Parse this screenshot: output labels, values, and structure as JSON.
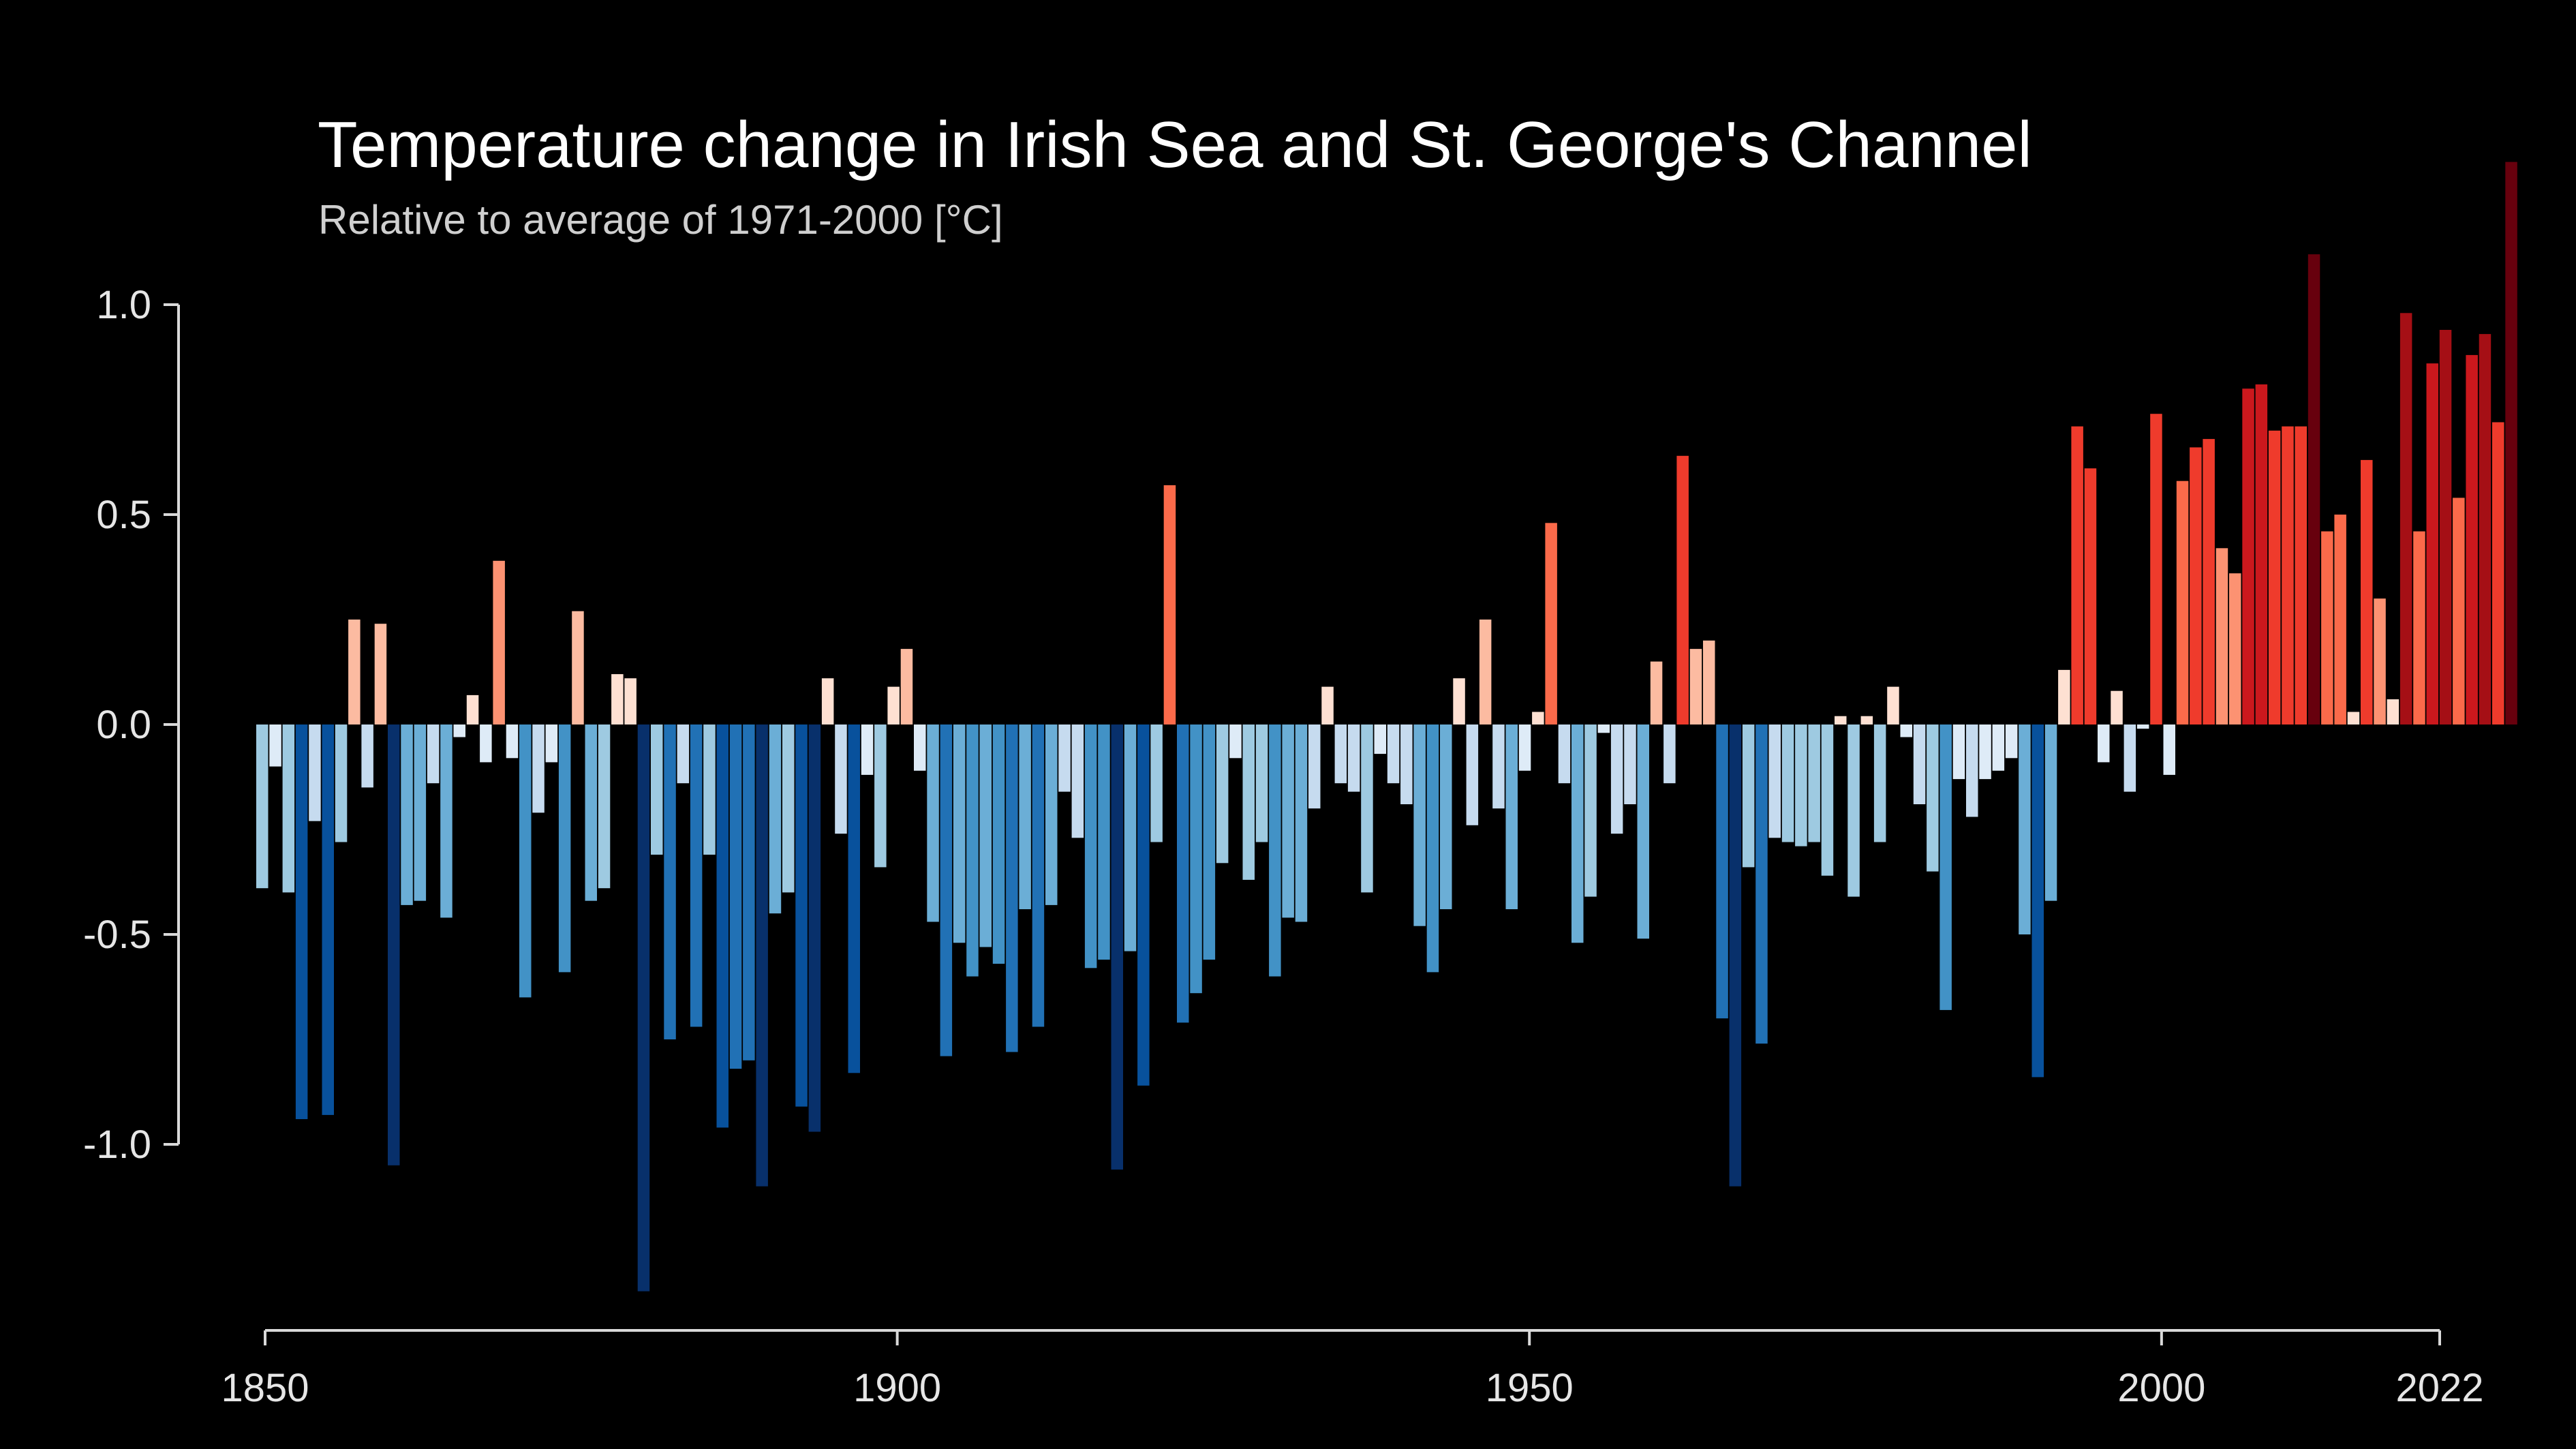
{
  "chart_data": {
    "type": "bar",
    "title": "Temperature change in Irish Sea and St. George's Channel",
    "subtitle": "Relative to average of 1971-2000  [°C]",
    "xlim": [
      1850,
      2022
    ],
    "ylim": [
      -1.45,
      1.35
    ],
    "yticks": [
      "1.0",
      "0.5",
      "0.0",
      "-0.5",
      "-1.0"
    ],
    "ytick_values": [
      1.0,
      0.5,
      0.0,
      -0.5,
      -1.0
    ],
    "xticks": [
      "1850",
      "1900",
      "1950",
      "2000",
      "2022"
    ],
    "xtick_values": [
      1850,
      1900,
      1950,
      2000,
      2022
    ],
    "grid": false,
    "color_scale": {
      "cold": [
        "#08306b",
        "#08519c",
        "#2171b5",
        "#4292c6",
        "#6baed6",
        "#9ecae1",
        "#c6dbef",
        "#deebf7"
      ],
      "warm": [
        "#fee0d2",
        "#fcbba1",
        "#fc9272",
        "#fb6a4a",
        "#ef3b2c",
        "#cb181d",
        "#a50f15",
        "#67000d"
      ]
    },
    "series": [
      {
        "start_year": 1850,
        "values": [
          -0.39,
          -0.1,
          -0.4,
          -0.94,
          -0.23,
          -0.93,
          -0.28,
          0.25,
          -0.15,
          0.24,
          -1.05,
          -0.43,
          -0.42,
          -0.14,
          -0.46,
          -0.03,
          0.07,
          -0.09,
          0.39,
          -0.08,
          -0.65,
          -0.21,
          -0.09,
          -0.59,
          0.27,
          -0.42,
          -0.39,
          0.12,
          0.11,
          -1.35,
          -0.31,
          -0.75,
          -0.14,
          -0.72,
          -0.31,
          -0.96,
          -0.82,
          -0.8,
          -1.1,
          -0.45,
          -0.4,
          -0.91,
          -0.97,
          0.11,
          -0.26,
          -0.83,
          -0.12,
          -0.34,
          0.09,
          0.18,
          -0.11,
          -0.47,
          -0.79,
          -0.52,
          -0.6,
          -0.53,
          -0.57,
          -0.78,
          -0.44,
          -0.72,
          -0.43,
          -0.16,
          -0.27,
          -0.58,
          -0.56,
          -1.06,
          -0.54,
          -0.86,
          -0.28,
          0.57,
          -0.71,
          -0.64,
          -0.56,
          -0.33,
          -0.08,
          -0.37,
          -0.28,
          -0.6,
          -0.46,
          -0.47,
          -0.2,
          0.09,
          -0.14,
          -0.16,
          -0.4,
          -0.07,
          -0.14,
          -0.19,
          -0.48,
          -0.59,
          -0.44,
          0.11,
          -0.24,
          0.25,
          -0.2,
          -0.44,
          -0.11,
          0.03,
          0.48,
          -0.14,
          -0.52,
          -0.41,
          -0.02,
          -0.26,
          -0.19,
          -0.51,
          0.15,
          -0.14,
          0.64,
          0.18,
          0.2,
          -0.7,
          -1.1,
          -0.34,
          -0.76,
          -0.27,
          -0.28,
          -0.29,
          -0.28,
          -0.36,
          0.02,
          -0.41,
          0.02,
          -0.28,
          0.09,
          -0.03,
          -0.19,
          -0.35,
          -0.68,
          -0.13,
          -0.22,
          -0.13,
          -0.11,
          -0.08,
          -0.5,
          -0.84,
          -0.42,
          0.13,
          0.71,
          0.61,
          -0.09,
          0.08,
          -0.16,
          -0.01,
          0.74,
          -0.12,
          0.58,
          0.66,
          0.68,
          0.42,
          0.36,
          0.8,
          0.81,
          0.7,
          0.71,
          0.71,
          1.12,
          0.46,
          0.5,
          0.03,
          0.63,
          0.3,
          0.06,
          0.98,
          0.46,
          0.86,
          0.94,
          0.54,
          0.88,
          0.93,
          0.72,
          1.34
        ]
      }
    ]
  }
}
